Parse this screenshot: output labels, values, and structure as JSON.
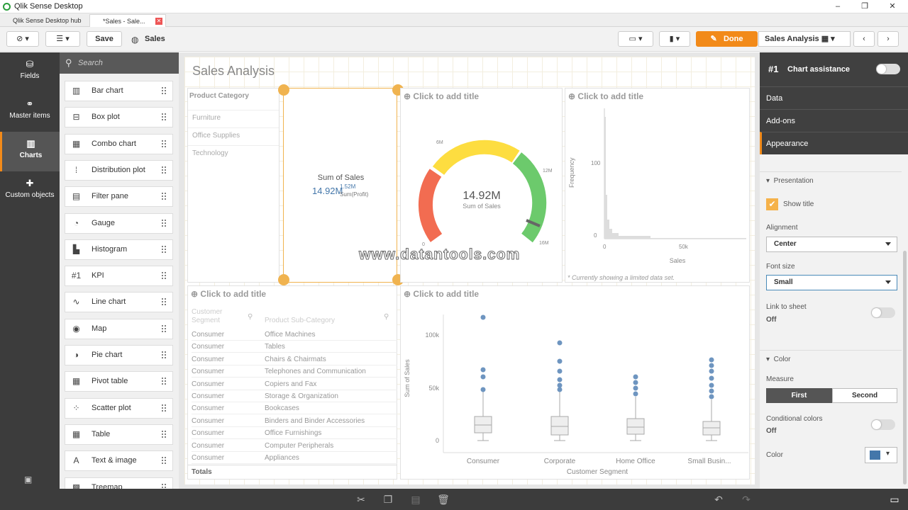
{
  "window": {
    "title": "Qlik Sense Desktop",
    "controls": [
      "–",
      "❐",
      "✕"
    ]
  },
  "tabs": [
    {
      "label": "Qlik Sense Desktop hub"
    },
    {
      "label": "*Sales - Sale..."
    }
  ],
  "toolbar": {
    "save": "Save",
    "app_name": "Sales",
    "done": "Done",
    "sheet_name": "Sales Analysis"
  },
  "left_nav": [
    {
      "label": "Fields"
    },
    {
      "label": "Master items"
    },
    {
      "label": "Charts"
    },
    {
      "label": "Custom objects"
    }
  ],
  "assets": {
    "search_placeholder": "Search",
    "items": [
      "Bar chart",
      "Box plot",
      "Combo chart",
      "Distribution plot",
      "Filter pane",
      "Gauge",
      "Histogram",
      "KPI",
      "Line chart",
      "Map",
      "Pie chart",
      "Pivot table",
      "Scatter plot",
      "Table",
      "Text & image",
      "Treemap"
    ]
  },
  "sheet": {
    "title": "Sales Analysis",
    "filter": {
      "title": "Product Category",
      "values": [
        "Furniture",
        "Office Supplies",
        "Technology"
      ]
    },
    "kpi": {
      "label": "Sum of Sales",
      "value": "14.92M",
      "sub_value": "1.52M",
      "sub_label": "Sum(Profit)"
    },
    "add_title": "Click to add title",
    "gauge": {
      "value": "14.92M",
      "label": "Sum of Sales",
      "ticks": [
        "0",
        "6M",
        "12M",
        "16M"
      ],
      "fraction": 0.93
    },
    "histogram": {
      "y_label": "Frequency",
      "x_label": "Sales",
      "y_ticks": [
        "100",
        "0"
      ],
      "x_ticks": [
        "0",
        "50k"
      ],
      "note": "* Currently showing a limited data set."
    },
    "table": {
      "headers": [
        "Customer Segment",
        "Product Sub-Category"
      ],
      "rows": [
        [
          "Consumer",
          "Office Machines"
        ],
        [
          "Consumer",
          "Tables"
        ],
        [
          "Consumer",
          "Chairs & Chairmats"
        ],
        [
          "Consumer",
          "Telephones and Communication"
        ],
        [
          "Consumer",
          "Copiers and Fax"
        ],
        [
          "Consumer",
          "Storage & Organization"
        ],
        [
          "Consumer",
          "Bookcases"
        ],
        [
          "Consumer",
          "Binders and Binder Accessories"
        ],
        [
          "Consumer",
          "Office Furnishings"
        ],
        [
          "Consumer",
          "Computer Peripherals"
        ],
        [
          "Consumer",
          "Appliances"
        ]
      ],
      "totals": "Totals"
    },
    "boxplot": {
      "y_label": "Sum of Sales",
      "x_label": "Customer Segment",
      "y_ticks": [
        "100k",
        "50k",
        "0"
      ],
      "categories": [
        "Consumer",
        "Corporate",
        "Home Office",
        "Small Busin..."
      ]
    },
    "watermark": "www.datantools.com"
  },
  "right_panel": {
    "header": "Chart assistance",
    "kpi_icon": "#1",
    "sections": [
      "Data",
      "Add-ons",
      "Appearance"
    ],
    "presentation": "Presentation",
    "show_title": "Show title",
    "alignment_label": "Alignment",
    "alignment_value": "Center",
    "font_size_label": "Font size",
    "font_size_value": "Small",
    "link_label": "Link to sheet",
    "link_value": "Off",
    "color_section": "Color",
    "measure_label": "Measure",
    "measure_first": "First",
    "measure_second": "Second",
    "cond_label": "Conditional colors",
    "cond_value": "Off",
    "color_label": "Color",
    "color_swatch": "#4477aa"
  }
}
